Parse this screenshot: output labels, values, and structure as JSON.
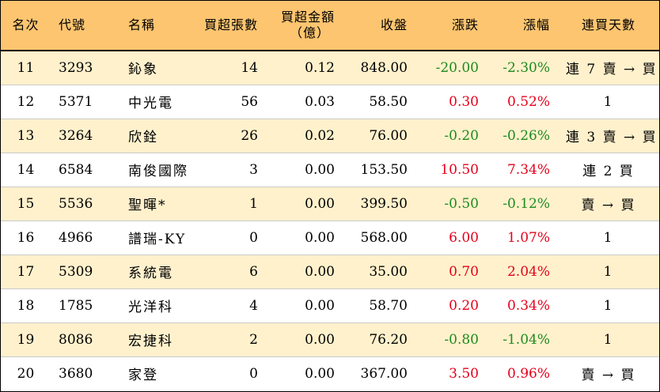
{
  "table": {
    "headers": {
      "rank": "名次",
      "code": "代號",
      "name": "名稱",
      "net_buy_lots": "買超張數",
      "net_buy_amount_l1": "買超金額",
      "net_buy_amount_l2": "（億）",
      "close": "收盤",
      "change": "漲跌",
      "change_pct": "漲幅",
      "consecutive_days": "連買天數"
    },
    "rows": [
      {
        "rank": "11",
        "code": "3293",
        "name": "鈊象",
        "lots": "14",
        "amount": "0.12",
        "close": "848.00",
        "change": "-20.00",
        "pct": "-2.30%",
        "days": "連 7 賣 → 買",
        "dir": "down"
      },
      {
        "rank": "12",
        "code": "5371",
        "name": "中光電",
        "lots": "56",
        "amount": "0.03",
        "close": "58.50",
        "change": "0.30",
        "pct": "0.52%",
        "days": "1",
        "dir": "up"
      },
      {
        "rank": "13",
        "code": "3264",
        "name": "欣銓",
        "lots": "26",
        "amount": "0.02",
        "close": "76.00",
        "change": "-0.20",
        "pct": "-0.26%",
        "days": "連 3 賣 → 買",
        "dir": "down"
      },
      {
        "rank": "14",
        "code": "6584",
        "name": "南俊國際",
        "lots": "3",
        "amount": "0.00",
        "close": "153.50",
        "change": "10.50",
        "pct": "7.34%",
        "days": "連 2 買",
        "dir": "up"
      },
      {
        "rank": "15",
        "code": "5536",
        "name": "聖暉*",
        "lots": "1",
        "amount": "0.00",
        "close": "399.50",
        "change": "-0.50",
        "pct": "-0.12%",
        "days": "賣 → 買",
        "dir": "down"
      },
      {
        "rank": "16",
        "code": "4966",
        "name": "譜瑞-KY",
        "lots": "0",
        "amount": "0.00",
        "close": "568.00",
        "change": "6.00",
        "pct": "1.07%",
        "days": "1",
        "dir": "up"
      },
      {
        "rank": "17",
        "code": "5309",
        "name": "系統電",
        "lots": "6",
        "amount": "0.00",
        "close": "35.00",
        "change": "0.70",
        "pct": "2.04%",
        "days": "1",
        "dir": "up"
      },
      {
        "rank": "18",
        "code": "1785",
        "name": "光洋科",
        "lots": "4",
        "amount": "0.00",
        "close": "58.70",
        "change": "0.20",
        "pct": "0.34%",
        "days": "1",
        "dir": "up"
      },
      {
        "rank": "19",
        "code": "8086",
        "name": "宏捷科",
        "lots": "2",
        "amount": "0.00",
        "close": "76.20",
        "change": "-0.80",
        "pct": "-1.04%",
        "days": "1",
        "dir": "down"
      },
      {
        "rank": "20",
        "code": "3680",
        "name": "家登",
        "lots": "0",
        "amount": "0.00",
        "close": "367.00",
        "change": "3.50",
        "pct": "0.96%",
        "days": "賣 → 買",
        "dir": "up"
      }
    ]
  },
  "colors": {
    "header_bg": "#fdc570",
    "row_highlight_bg": "#fff1cc",
    "up": "#e6001a",
    "down": "#1f8a1f"
  }
}
